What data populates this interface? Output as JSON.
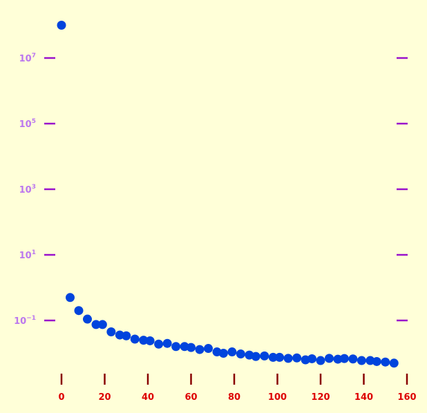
{
  "chart_data": {
    "type": "scatter",
    "title": "",
    "xlabel": "",
    "ylabel": "",
    "y_scale": "log",
    "xlim": [
      0,
      160
    ],
    "ylim_log10": [
      -2.7,
      8.9
    ],
    "grid": false,
    "legend": "none",
    "x_ticks": [
      {
        "value": 0,
        "label": "0"
      },
      {
        "value": 20,
        "label": "20"
      },
      {
        "value": 40,
        "label": "40"
      },
      {
        "value": 60,
        "label": "60"
      },
      {
        "value": 80,
        "label": "80"
      },
      {
        "value": 100,
        "label": "100"
      },
      {
        "value": 120,
        "label": "120"
      },
      {
        "value": 140,
        "label": "140"
      },
      {
        "value": 160,
        "label": "160"
      }
    ],
    "y_ticks": [
      {
        "log10": -1,
        "base": "10",
        "exp": "−1"
      },
      {
        "log10": 1,
        "base": "10",
        "exp": "1"
      },
      {
        "log10": 3,
        "base": "10",
        "exp": "3"
      },
      {
        "log10": 5,
        "base": "10",
        "exp": "5"
      },
      {
        "log10": 7,
        "base": "10",
        "exp": "7"
      }
    ],
    "colors": {
      "background": "#ffffd8",
      "points": "#0044dd",
      "y_ticks": "#9911cc",
      "y_labels": "#bb77ee",
      "x_ticks": "#880000",
      "x_labels": "#dd0000"
    },
    "series": [
      {
        "x": [
          0,
          4,
          8,
          12,
          16,
          19,
          23,
          27,
          30,
          34,
          38,
          41,
          45,
          49,
          53,
          57,
          60,
          64,
          68,
          72,
          75,
          79,
          83,
          87,
          90,
          94,
          98,
          101,
          105,
          109,
          113,
          116,
          120,
          124,
          128,
          131,
          135,
          139,
          143,
          146,
          150,
          154
        ],
        "y": [
          100000000,
          0.5,
          0.2,
          0.11,
          0.075,
          0.075,
          0.045,
          0.036,
          0.034,
          0.027,
          0.025,
          0.024,
          0.019,
          0.02,
          0.016,
          0.016,
          0.015,
          0.013,
          0.014,
          0.011,
          0.01,
          0.011,
          0.0095,
          0.0088,
          0.008,
          0.0083,
          0.0075,
          0.0075,
          0.007,
          0.0072,
          0.0063,
          0.0068,
          0.006,
          0.007,
          0.0066,
          0.0069,
          0.0067,
          0.006,
          0.006,
          0.0056,
          0.0054,
          0.005
        ]
      }
    ]
  }
}
